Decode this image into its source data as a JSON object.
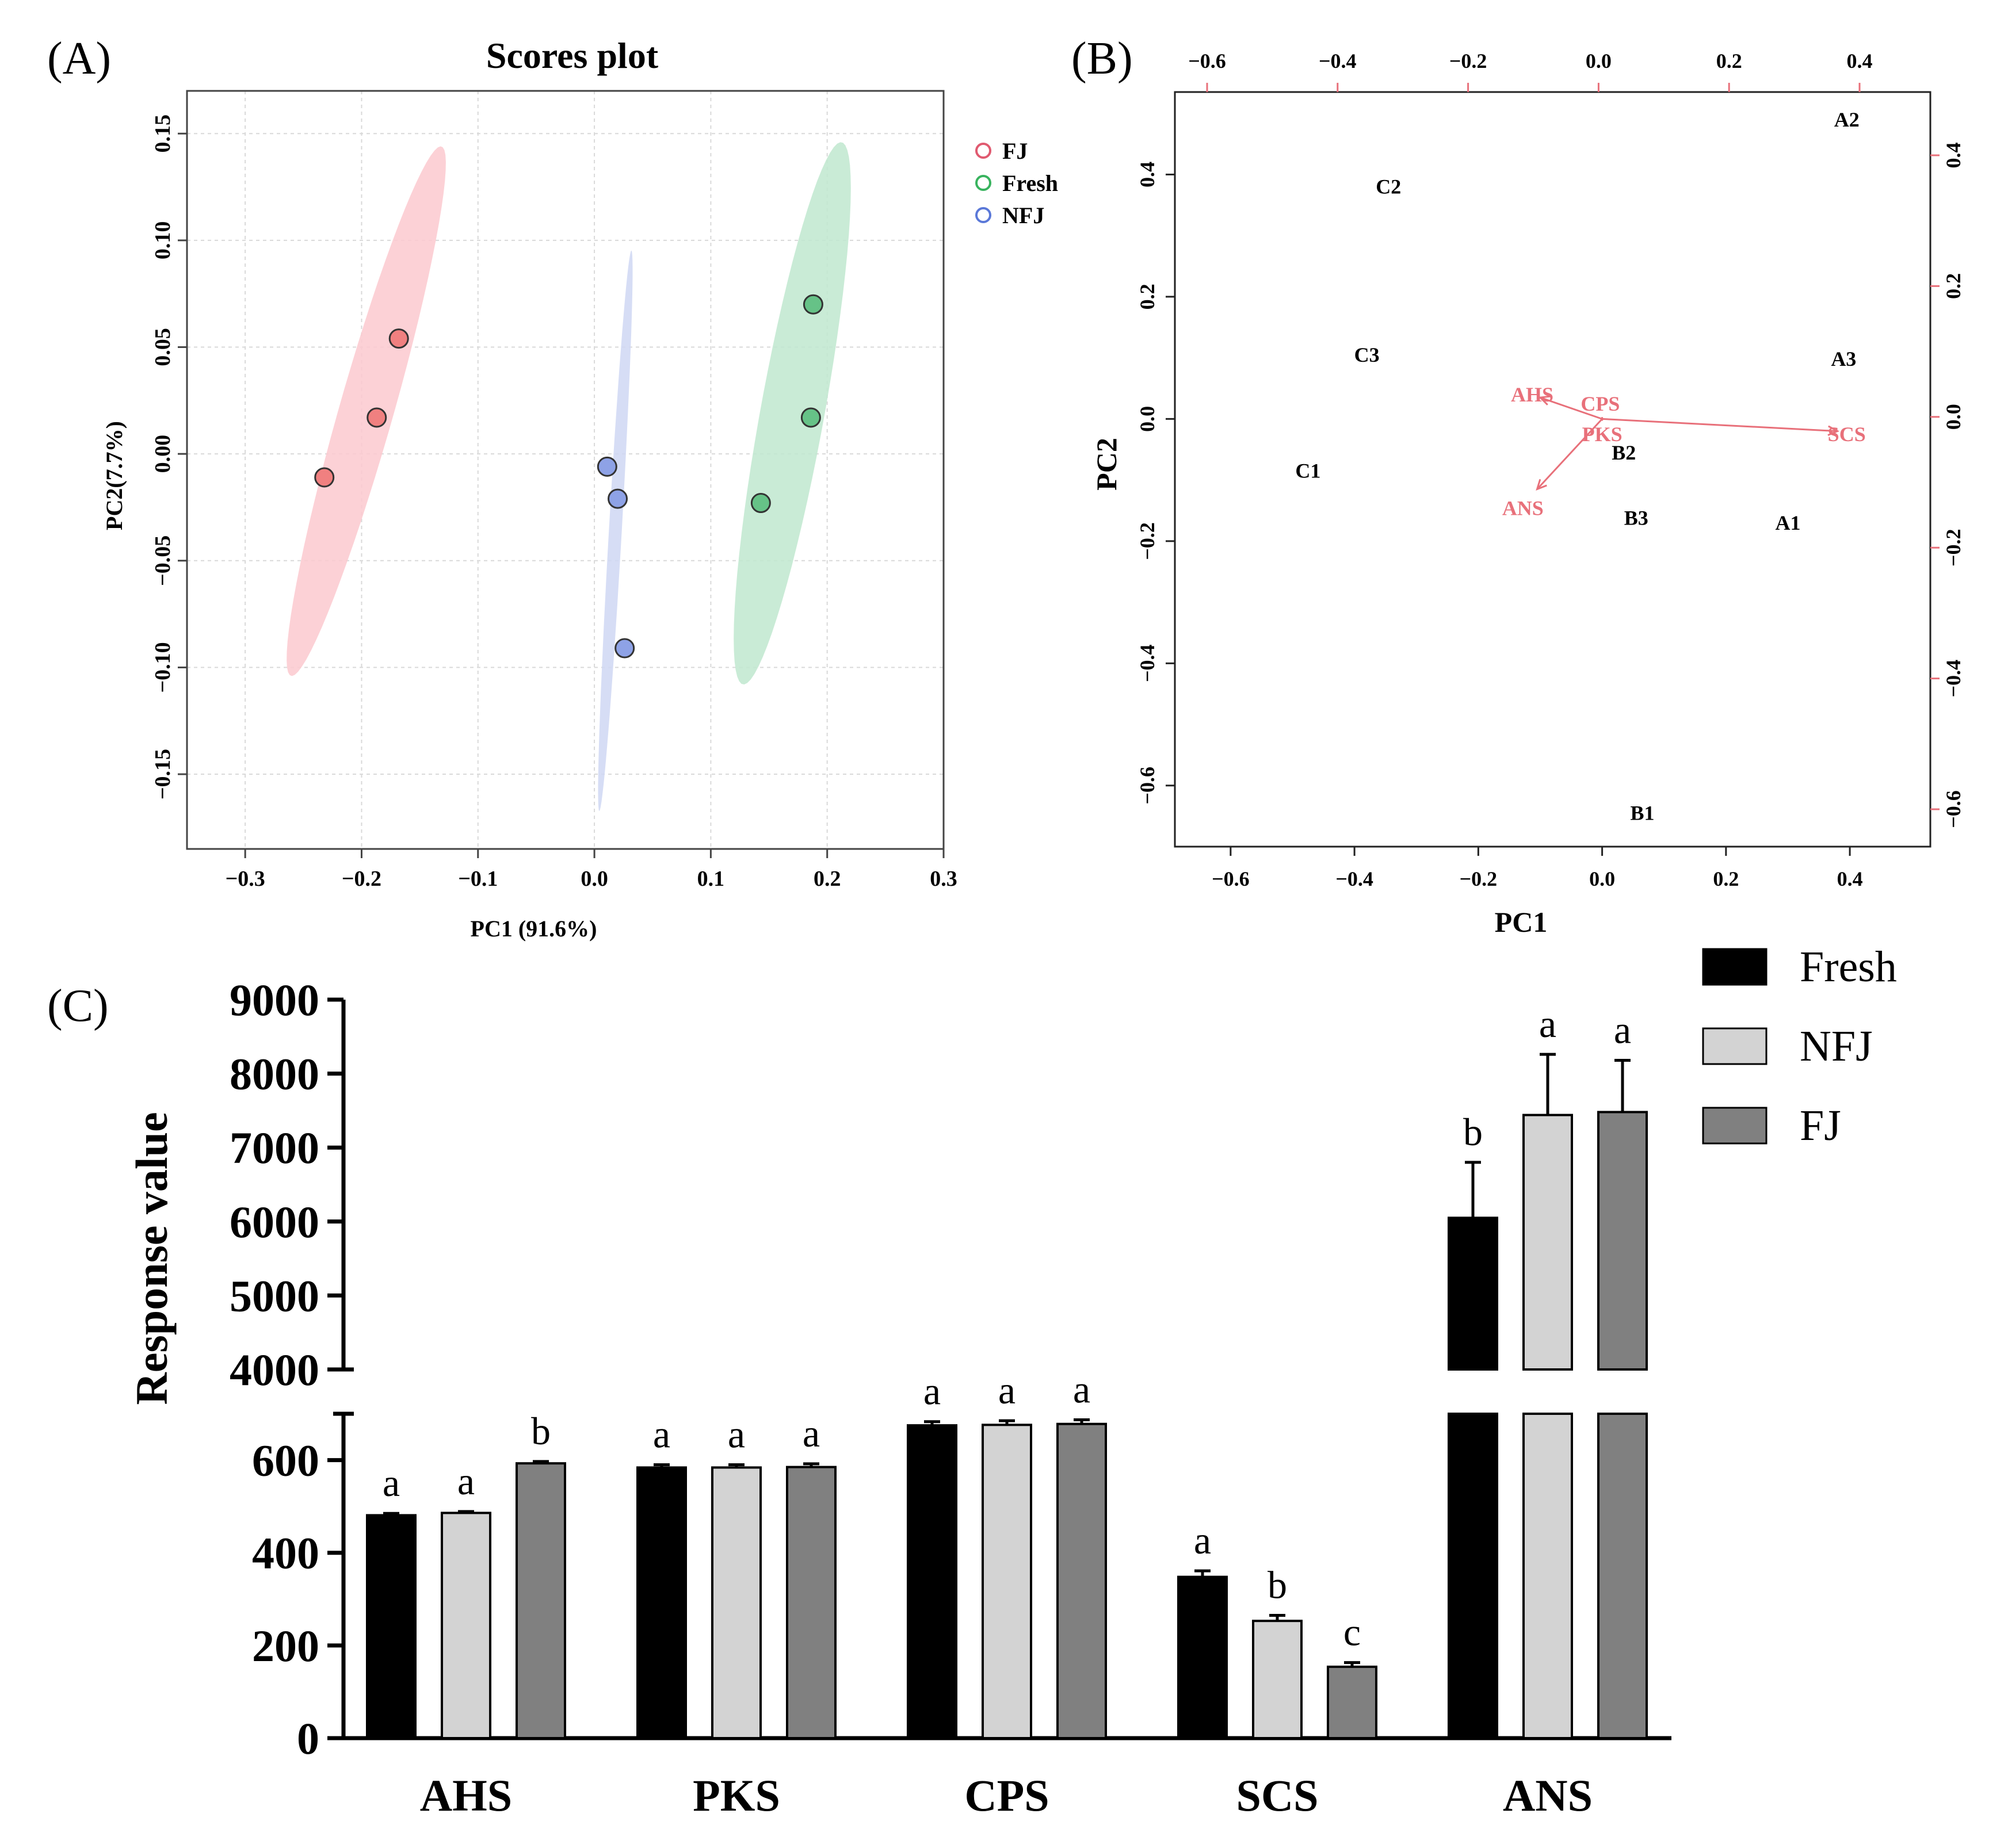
{
  "panel_labels": {
    "a": "(A)",
    "b": "(B)",
    "c": "(C)"
  },
  "colors": {
    "FJ_point": "#f08080",
    "FJ_ellipse": "#fcc9cf",
    "Fresh_point": "#66c287",
    "Fresh_ellipse": "#bfe8cf",
    "NFJ_point": "#8ea2e6",
    "NFJ_ellipse": "#cfd7f3",
    "biplot_var": "#e8707a",
    "bar_Fresh": "#000000",
    "bar_NFJ": "#d3d3d3",
    "bar_FJ": "#808080",
    "legend_FJ": "#e05a70",
    "legend_Fresh": "#38b35e",
    "legend_NFJ": "#5a78d8"
  },
  "chart_data": [
    {
      "id": "A",
      "type": "scatter",
      "title": "Scores plot",
      "xlabel": "PC1 (91.6%)",
      "ylabel": "PC2(7.7%)",
      "xlim": [
        -0.35,
        0.3
      ],
      "ylim": [
        -0.185,
        0.17
      ],
      "xticks": [
        -0.3,
        -0.2,
        -0.1,
        0.0,
        0.1,
        0.2,
        0.3
      ],
      "xtick_labels": [
        "−0.3",
        "−0.2",
        "−0.1",
        "0.0",
        "0.1",
        "0.2",
        "0.3"
      ],
      "yticks": [
        -0.15,
        -0.1,
        -0.05,
        0.0,
        0.05,
        0.1,
        0.15
      ],
      "ytick_labels": [
        "−0.15",
        "−0.10",
        "−0.05",
        "0.00",
        "0.05",
        "0.10",
        "0.15"
      ],
      "grid": true,
      "legend_position": "outside-top-right",
      "groups": [
        {
          "name": "FJ",
          "points": [
            [
              -0.232,
              -0.011
            ],
            [
              -0.187,
              0.017
            ],
            [
              -0.168,
              0.054
            ]
          ],
          "ellipse": {
            "center": [
              -0.196,
              0.02
            ],
            "semi_major": 0.14,
            "semi_minor": 0.0215,
            "angle_deg": 62
          }
        },
        {
          "name": "Fresh",
          "points": [
            [
              0.188,
              0.07
            ],
            [
              0.186,
              0.017
            ],
            [
              0.143,
              -0.023
            ]
          ],
          "ellipse": {
            "center": [
              0.17,
              0.019
            ],
            "semi_major": 0.134,
            "semi_minor": 0.0265,
            "angle_deg": 71
          }
        },
        {
          "name": "NFJ",
          "points": [
            [
              0.011,
              -0.006
            ],
            [
              0.02,
              -0.021
            ],
            [
              0.026,
              -0.091
            ]
          ],
          "ellipse": {
            "center": [
              0.018,
              -0.036
            ],
            "semi_major": 0.132,
            "semi_minor": 0.0055,
            "angle_deg": 84
          }
        }
      ]
    },
    {
      "id": "B",
      "type": "biplot",
      "xlabel": "PC1",
      "ylabel": "PC2",
      "xlim": [
        -0.69,
        0.53
      ],
      "ylim": [
        -0.7,
        0.535
      ],
      "xticks": [
        -0.6,
        -0.4,
        -0.2,
        0.0,
        0.2,
        0.4
      ],
      "xtick_labels": [
        "−0.6",
        "−0.4",
        "−0.2",
        "0.0",
        "0.2",
        "0.4"
      ],
      "yticks": [
        -0.6,
        -0.4,
        -0.2,
        0.0,
        0.2,
        0.4
      ],
      "ytick_labels": [
        "−0.6",
        "−0.4",
        "−0.2",
        "0.0",
        "0.2",
        "0.4"
      ],
      "top_xticks": [
        -0.6,
        -0.4,
        -0.2,
        0.0,
        0.2,
        0.4
      ],
      "top_xtick_labels": [
        "−0.6",
        "−0.4",
        "−0.2",
        "0.0",
        "0.2",
        "0.4"
      ],
      "right_yticks": [
        -0.6,
        -0.4,
        -0.2,
        0.0,
        0.2,
        0.4
      ],
      "right_ytick_labels": [
        "−0.6",
        "−0.4",
        "−0.2",
        "0.0",
        "0.2",
        "0.4"
      ],
      "observations": [
        {
          "label": "A2",
          "x": 0.395,
          "y": 0.49
        },
        {
          "label": "C2",
          "x": -0.345,
          "y": 0.38
        },
        {
          "label": "C3",
          "x": -0.38,
          "y": 0.105
        },
        {
          "label": "A3",
          "x": 0.39,
          "y": 0.098
        },
        {
          "label": "B2",
          "x": 0.035,
          "y": -0.055
        },
        {
          "label": "C1",
          "x": -0.475,
          "y": -0.085
        },
        {
          "label": "B3",
          "x": 0.055,
          "y": -0.162
        },
        {
          "label": "A1",
          "x": 0.3,
          "y": -0.17
        },
        {
          "label": "B1",
          "x": 0.065,
          "y": -0.645
        }
      ],
      "variables": [
        {
          "label": "AHS",
          "x": -0.1,
          "y": 0.035
        },
        {
          "label": "CPS",
          "x": 0.0,
          "y": 0.003
        },
        {
          "label": "PKS",
          "x": 0.0,
          "y": -0.003
        },
        {
          "label": "SCS",
          "x": 0.38,
          "y": -0.02
        },
        {
          "label": "ANS",
          "x": -0.105,
          "y": -0.115
        }
      ],
      "variable_labels": [
        {
          "label": "AHS",
          "x": -0.113,
          "y": 0.04
        },
        {
          "label": "CPS",
          "x": -0.003,
          "y": 0.025
        },
        {
          "label": "PKS",
          "x": 0.0,
          "y": -0.025
        },
        {
          "label": "SCS",
          "x": 0.395,
          "y": -0.025
        },
        {
          "label": "ANS",
          "x": -0.128,
          "y": -0.146
        }
      ]
    },
    {
      "id": "C",
      "type": "bar",
      "ylabel": "Response value",
      "xlabel": "",
      "categories": [
        "AHS",
        "PKS",
        "CPS",
        "SCS",
        "ANS"
      ],
      "axis_break": {
        "lower_range": [
          0,
          700
        ],
        "upper_range": [
          4000,
          9000
        ]
      },
      "lower_yticks": [
        0,
        200,
        400,
        600
      ],
      "lower_ytick_labels": [
        "0",
        "200",
        "400",
        "600"
      ],
      "upper_yticks": [
        4000,
        5000,
        6000,
        7000,
        8000,
        9000
      ],
      "upper_ytick_labels": [
        "4000",
        "5000",
        "6000",
        "7000",
        "8000",
        "9000"
      ],
      "legend_position": "top-right",
      "series": [
        {
          "name": "Fresh",
          "values": [
            481,
            584,
            675,
            348,
            6050
          ],
          "errors": [
            4,
            6,
            8,
            13,
            750
          ],
          "letters": [
            "a",
            "a",
            "a",
            "a",
            "b"
          ]
        },
        {
          "name": "NFJ",
          "values": [
            486,
            584,
            676,
            253,
            7440
          ],
          "errors": [
            3,
            6,
            9,
            12,
            820
          ],
          "letters": [
            "a",
            "a",
            "a",
            "b",
            "a"
          ]
        },
        {
          "name": "FJ",
          "values": [
            593,
            585,
            678,
            154,
            7480
          ],
          "errors": [
            4,
            7,
            9,
            9,
            700
          ],
          "letters": [
            "b",
            "a",
            "a",
            "c",
            "a"
          ]
        }
      ]
    }
  ]
}
